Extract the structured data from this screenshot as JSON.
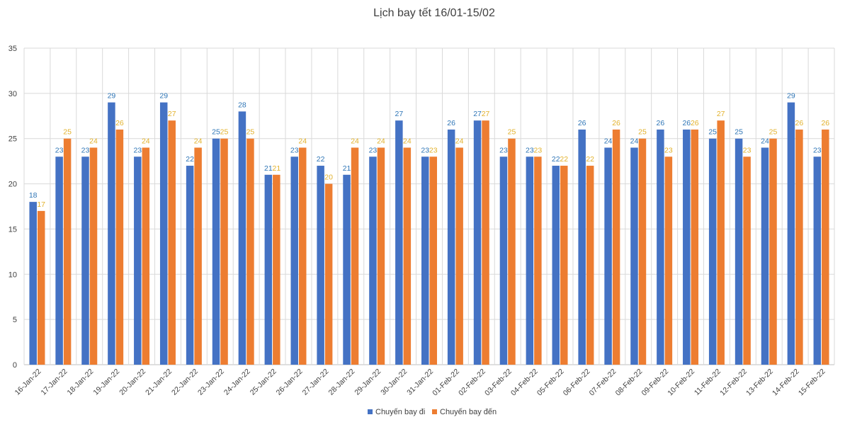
{
  "chart_data": {
    "type": "bar",
    "title": "Lịch bay tết 16/01-15/02",
    "xlabel": "",
    "ylabel": "",
    "ylim": [
      0,
      35
    ],
    "yticks": [
      0,
      5,
      10,
      15,
      20,
      25,
      30,
      35
    ],
    "grid": true,
    "legend_position": "bottom",
    "categories": [
      "16-Jan-22",
      "17-Jan-22",
      "18-Jan-22",
      "19-Jan-22",
      "20-Jan-22",
      "21-Jan-22",
      "22-Jan-22",
      "23-Jan-22",
      "24-Jan-22",
      "25-Jan-22",
      "26-Jan-22",
      "27-Jan-22",
      "28-Jan-22",
      "29-Jan-22",
      "30-Jan-22",
      "31-Jan-22",
      "01-Feb-22",
      "02-Feb-22",
      "03-Feb-22",
      "04-Feb-22",
      "05-Feb-22",
      "06-Feb-22",
      "07-Feb-22",
      "08-Feb-22",
      "09-Feb-22",
      "10-Feb-22",
      "11-Feb-22",
      "12-Feb-22",
      "13-Feb-22",
      "14-Feb-22",
      "15-Feb-22"
    ],
    "series": [
      {
        "name": "Chuyến bay đi",
        "color": "#4472C4",
        "label_color": "#2E75B6",
        "values": [
          18,
          23,
          23,
          29,
          23,
          29,
          22,
          25,
          28,
          21,
          23,
          22,
          21,
          23,
          27,
          23,
          26,
          27,
          23,
          23,
          22,
          26,
          24,
          24,
          26,
          26,
          25,
          25,
          24,
          29,
          23
        ]
      },
      {
        "name": "Chuyến bay đến",
        "color": "#ED7D31",
        "label_color": "#E2B12B",
        "values": [
          17,
          25,
          24,
          26,
          24,
          27,
          24,
          25,
          25,
          21,
          24,
          20,
          24,
          24,
          24,
          23,
          24,
          27,
          25,
          23,
          22,
          22,
          26,
          25,
          23,
          26,
          27,
          23,
          25,
          26,
          26
        ]
      }
    ]
  }
}
